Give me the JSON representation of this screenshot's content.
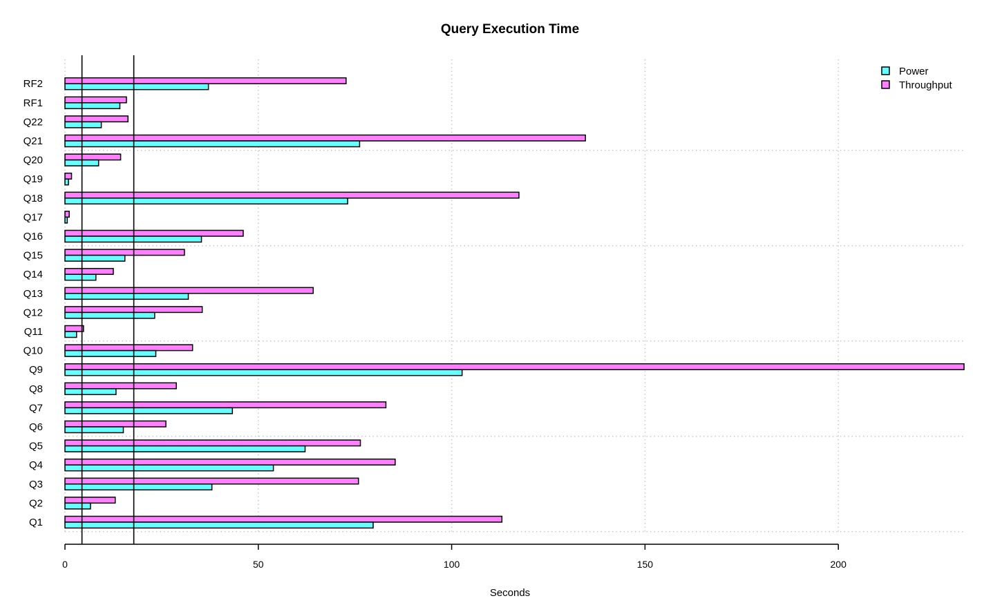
{
  "chart_data": {
    "type": "bar",
    "orientation": "horizontal",
    "title": "Query Execution Time",
    "xlabel": "Seconds",
    "ylabel": "",
    "xlim": [
      0,
      232.5
    ],
    "xticks": [
      0,
      50,
      100,
      150,
      200
    ],
    "grid": true,
    "legend_position": "top-right",
    "categories": [
      "Q1",
      "Q2",
      "Q3",
      "Q4",
      "Q5",
      "Q6",
      "Q7",
      "Q8",
      "Q9",
      "Q10",
      "Q11",
      "Q12",
      "Q13",
      "Q14",
      "Q15",
      "Q16",
      "Q17",
      "Q18",
      "Q19",
      "Q20",
      "Q21",
      "Q22",
      "RF1",
      "RF2"
    ],
    "series": [
      {
        "name": "Power",
        "color": "#66ffff",
        "values": [
          79.7,
          6.6,
          38.0,
          53.9,
          62.1,
          15.1,
          43.3,
          13.2,
          102.7,
          23.5,
          3.0,
          23.2,
          31.9,
          8.0,
          15.5,
          35.3,
          0.6,
          73.1,
          0.9,
          8.7,
          76.2,
          9.4,
          14.2,
          37.1
        ]
      },
      {
        "name": "Throughput",
        "color": "#ff80ff",
        "values": [
          113.0,
          13.0,
          75.9,
          85.4,
          76.4,
          26.1,
          83.0,
          28.8,
          232.5,
          33.0,
          4.8,
          35.5,
          64.2,
          12.5,
          30.9,
          46.1,
          1.1,
          117.4,
          1.7,
          14.4,
          134.6,
          16.3,
          15.9,
          72.7
        ]
      }
    ],
    "reference_lines": [
      4.4,
      17.8
    ]
  }
}
